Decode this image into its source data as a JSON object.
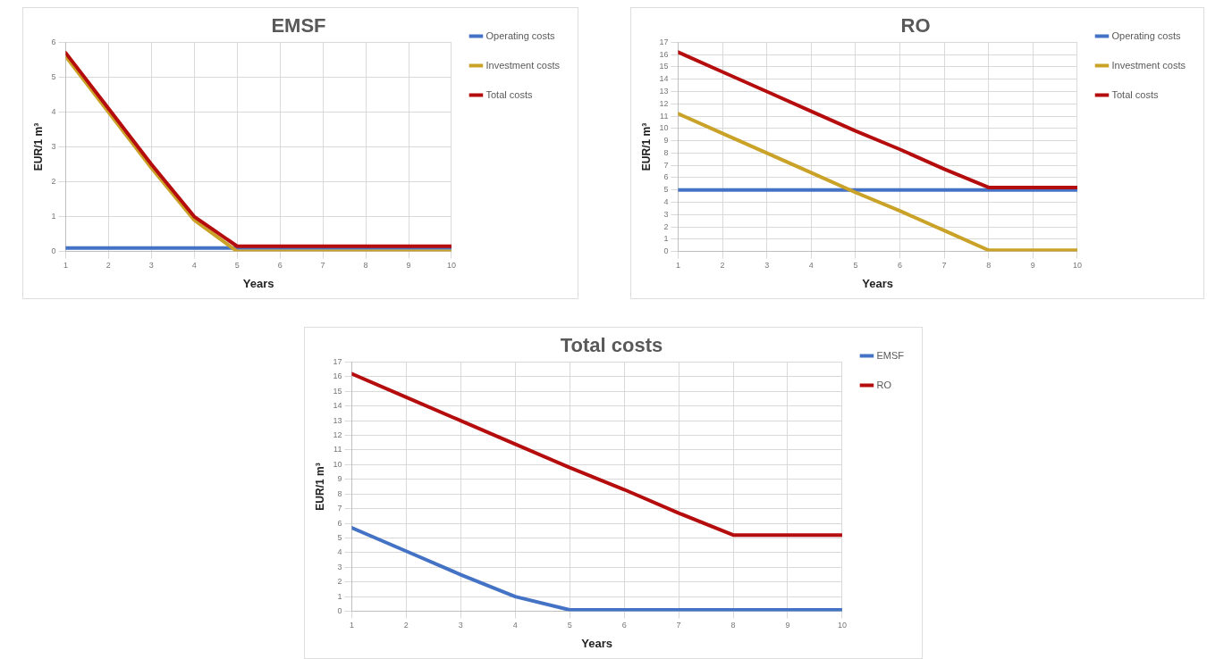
{
  "chart_data": [
    {
      "type": "line",
      "title": "EMSF",
      "xlabel": "Years",
      "ylabel": "EUR/1 m³",
      "x": [
        1,
        2,
        3,
        4,
        5,
        6,
        7,
        8,
        9,
        10
      ],
      "xlim": [
        1,
        10
      ],
      "xticks": [
        1,
        2,
        3,
        4,
        5,
        6,
        7,
        8,
        9,
        10
      ],
      "ylim": [
        0,
        6
      ],
      "yticks": [
        0,
        1,
        2,
        3,
        4,
        5,
        6
      ],
      "grid": true,
      "legend": "top right",
      "series": [
        {
          "name": "Operating costs",
          "color": "#4472c4",
          "values": [
            0.1,
            0.1,
            0.1,
            0.1,
            0.1,
            0.1,
            0.1,
            0.1,
            0.1,
            0.1
          ]
        },
        {
          "name": "Investment costs",
          "color": "#c9a227",
          "values": [
            5.6,
            4.0,
            2.4,
            0.9,
            0,
            0,
            0,
            0,
            0,
            0
          ]
        },
        {
          "name": "Total costs",
          "color": "#b50d0d",
          "values": [
            5.7,
            4.1,
            2.5,
            1.0,
            0.15,
            0.15,
            0.15,
            0.15,
            0.15,
            0.15
          ]
        }
      ]
    },
    {
      "type": "line",
      "title": "RO",
      "xlabel": "Years",
      "ylabel": "EUR/1 m³",
      "x": [
        1,
        2,
        3,
        4,
        5,
        6,
        7,
        8,
        9,
        10
      ],
      "xlim": [
        1,
        10
      ],
      "xticks": [
        1,
        2,
        3,
        4,
        5,
        6,
        7,
        8,
        9,
        10
      ],
      "ylim": [
        0,
        17
      ],
      "yticks": [
        0,
        1,
        2,
        3,
        4,
        5,
        6,
        7,
        8,
        9,
        10,
        11,
        12,
        13,
        14,
        15,
        16,
        17
      ],
      "grid": true,
      "legend": "top right",
      "series": [
        {
          "name": "Operating costs",
          "color": "#4472c4",
          "values": [
            5,
            5,
            5,
            5,
            5,
            5,
            5,
            5,
            5,
            5
          ]
        },
        {
          "name": "Investment costs",
          "color": "#c9a227",
          "values": [
            11.2,
            9.6,
            8.0,
            6.4,
            4.8,
            3.3,
            1.7,
            0.1,
            0.1,
            0.1
          ]
        },
        {
          "name": "Total costs",
          "color": "#b50d0d",
          "values": [
            16.2,
            14.6,
            13.0,
            11.4,
            9.8,
            8.3,
            6.7,
            5.2,
            5.2,
            5.2
          ]
        }
      ]
    },
    {
      "type": "line",
      "title": "Total costs",
      "xlabel": "Years",
      "ylabel": "EUR/1 m³",
      "x": [
        1,
        2,
        3,
        4,
        5,
        6,
        7,
        8,
        9,
        10
      ],
      "xlim": [
        1,
        10
      ],
      "xticks": [
        1,
        2,
        3,
        4,
        5,
        6,
        7,
        8,
        9,
        10
      ],
      "ylim": [
        0,
        17
      ],
      "yticks": [
        0,
        1,
        2,
        3,
        4,
        5,
        6,
        7,
        8,
        9,
        10,
        11,
        12,
        13,
        14,
        15,
        16,
        17
      ],
      "grid": true,
      "legend": "top right",
      "series": [
        {
          "name": "EMSF",
          "color": "#4472c4",
          "values": [
            5.7,
            4.1,
            2.5,
            1.0,
            0.1,
            0.1,
            0.1,
            0.1,
            0.1,
            0.1
          ]
        },
        {
          "name": "RO",
          "color": "#b50d0d",
          "values": [
            16.2,
            14.6,
            13.0,
            11.4,
            9.8,
            8.3,
            6.7,
            5.2,
            5.2,
            5.2
          ]
        }
      ]
    }
  ]
}
